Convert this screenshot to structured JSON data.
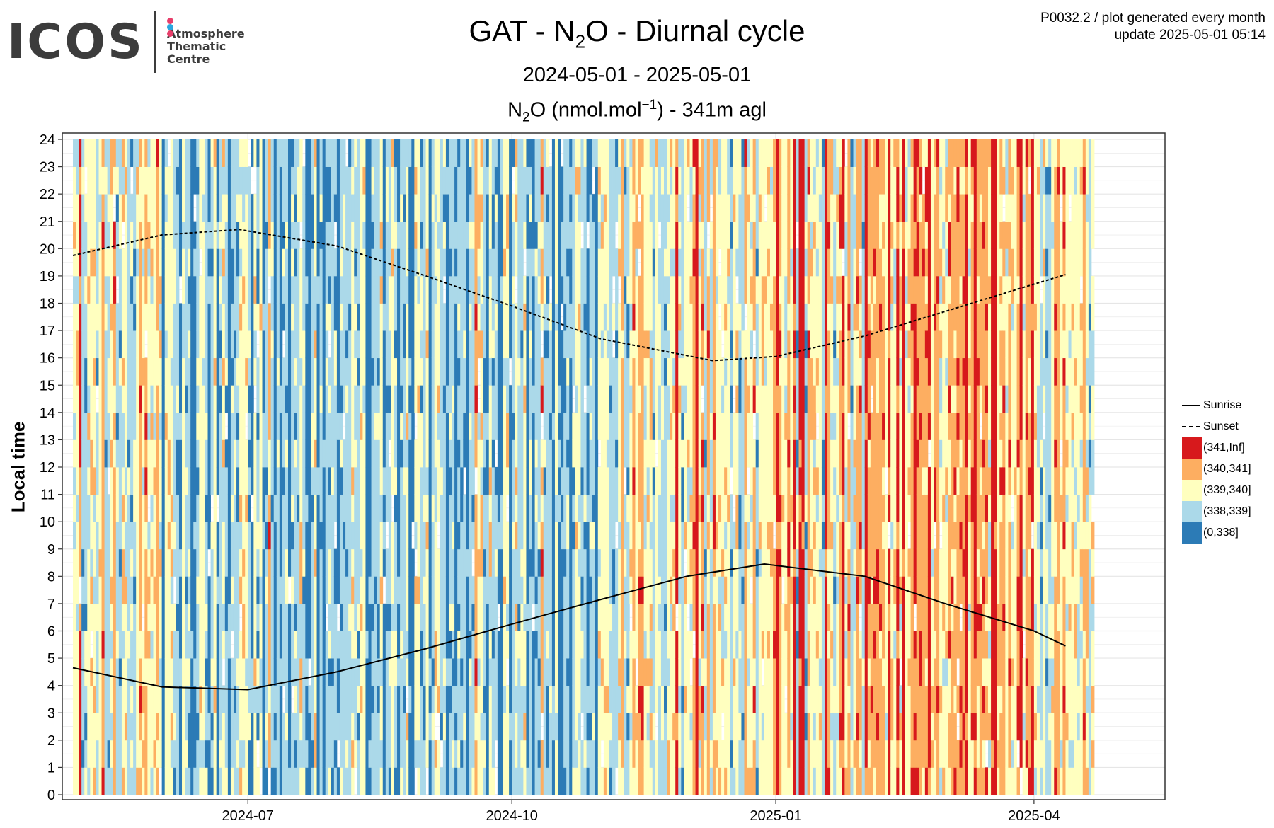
{
  "header": {
    "logo_text": "ICOS",
    "logo_subtitle": [
      "Atmosphere",
      "Thematic",
      "Centre"
    ],
    "logo_dot_colors": [
      "#e83e6b",
      "#2aa7df",
      "#e83e6b"
    ],
    "title_main": "GAT - N",
    "title_sub": "2",
    "title_rest": "O - Diurnal cycle",
    "date_range": "2024-05-01 - 2025-05-01",
    "plot_code": "P0032.2 / plot generated every month",
    "update_text": "update  2025-05-01 05:14"
  },
  "chart_data": {
    "type": "heatmap",
    "title": "GAT - N2O - Diurnal cycle",
    "subtitle": "N2O (nmol.mol-1) - 341m agl",
    "subtitle_parts": {
      "a": "N",
      "sub": "2",
      "b": "O (nmol.mol",
      "sup": "−1",
      "c": ") - 341m agl"
    },
    "xlabel": "",
    "ylabel": "Local time",
    "x_range": [
      "2024-05-01",
      "2025-04-22"
    ],
    "y_range": [
      0,
      24
    ],
    "x_ticks": [
      {
        "date": "2024-07-01",
        "label": "2024-07"
      },
      {
        "date": "2024-10-01",
        "label": "2024-10"
      },
      {
        "date": "2025-01-01",
        "label": "2025-01"
      },
      {
        "date": "2025-04-01",
        "label": "2025-04"
      }
    ],
    "y_ticks": [
      "0",
      "1",
      "2",
      "3",
      "4",
      "5",
      "6",
      "7",
      "8",
      "9",
      "10",
      "11",
      "12",
      "13",
      "14",
      "15",
      "16",
      "17",
      "18",
      "19",
      "20",
      "21",
      "22",
      "23",
      "24"
    ],
    "grid": true,
    "legend_position": "right",
    "legend": [
      {
        "label": "Sunrise",
        "style": "solid"
      },
      {
        "label": "Sunset",
        "style": "dashed"
      }
    ],
    "bins": [
      {
        "label": "(341,Inf]",
        "color": "#d7191c"
      },
      {
        "label": "(340,341]",
        "color": "#fdae61"
      },
      {
        "label": "(339,340]",
        "color": "#ffffbf"
      },
      {
        "label": "(338,339]",
        "color": "#abd9e9"
      },
      {
        "label": "(0,338]",
        "color": "#2c7bb6"
      }
    ],
    "dominant_bin_by_month": [
      {
        "month": "2024-05",
        "bin": 2
      },
      {
        "month": "2024-06",
        "bin": 3
      },
      {
        "month": "2024-07",
        "bin": 3
      },
      {
        "month": "2024-08",
        "bin": 3
      },
      {
        "month": "2024-09",
        "bin": 3
      },
      {
        "month": "2024-10",
        "bin": 3
      },
      {
        "month": "2024-11",
        "bin": 2
      },
      {
        "month": "2024-12",
        "bin": 2
      },
      {
        "month": "2025-01",
        "bin": 2
      },
      {
        "month": "2025-02",
        "bin": 1
      },
      {
        "month": "2025-03",
        "bin": 1
      },
      {
        "month": "2025-04",
        "bin": 2
      }
    ],
    "sunrise": [
      {
        "date": "2024-05-01",
        "hour": 4.65
      },
      {
        "date": "2024-06-01",
        "hour": 3.95
      },
      {
        "date": "2024-07-01",
        "hour": 3.85
      },
      {
        "date": "2024-08-01",
        "hour": 4.5
      },
      {
        "date": "2024-09-01",
        "hour": 5.35
      },
      {
        "date": "2024-10-01",
        "hour": 6.25
      },
      {
        "date": "2024-11-01",
        "hour": 7.15
      },
      {
        "date": "2024-12-01",
        "hour": 8.0
      },
      {
        "date": "2024-12-28",
        "hour": 8.45
      },
      {
        "date": "2025-02-01",
        "hour": 8.0
      },
      {
        "date": "2025-03-01",
        "hour": 7.0
      },
      {
        "date": "2025-04-01",
        "hour": 6.0
      },
      {
        "date": "2025-04-12",
        "hour": 5.45
      }
    ],
    "sunset": [
      {
        "date": "2024-05-01",
        "hour": 19.75
      },
      {
        "date": "2024-06-01",
        "hour": 20.5
      },
      {
        "date": "2024-06-28",
        "hour": 20.7
      },
      {
        "date": "2024-08-01",
        "hour": 20.1
      },
      {
        "date": "2024-09-01",
        "hour": 19.0
      },
      {
        "date": "2024-10-01",
        "hour": 17.9
      },
      {
        "date": "2024-11-01",
        "hour": 16.7
      },
      {
        "date": "2024-12-10",
        "hour": 15.9
      },
      {
        "date": "2025-01-01",
        "hour": 16.05
      },
      {
        "date": "2025-02-01",
        "hour": 16.8
      },
      {
        "date": "2025-03-01",
        "hour": 17.7
      },
      {
        "date": "2025-04-01",
        "hour": 18.7
      },
      {
        "date": "2025-04-12",
        "hour": 19.05
      }
    ]
  }
}
